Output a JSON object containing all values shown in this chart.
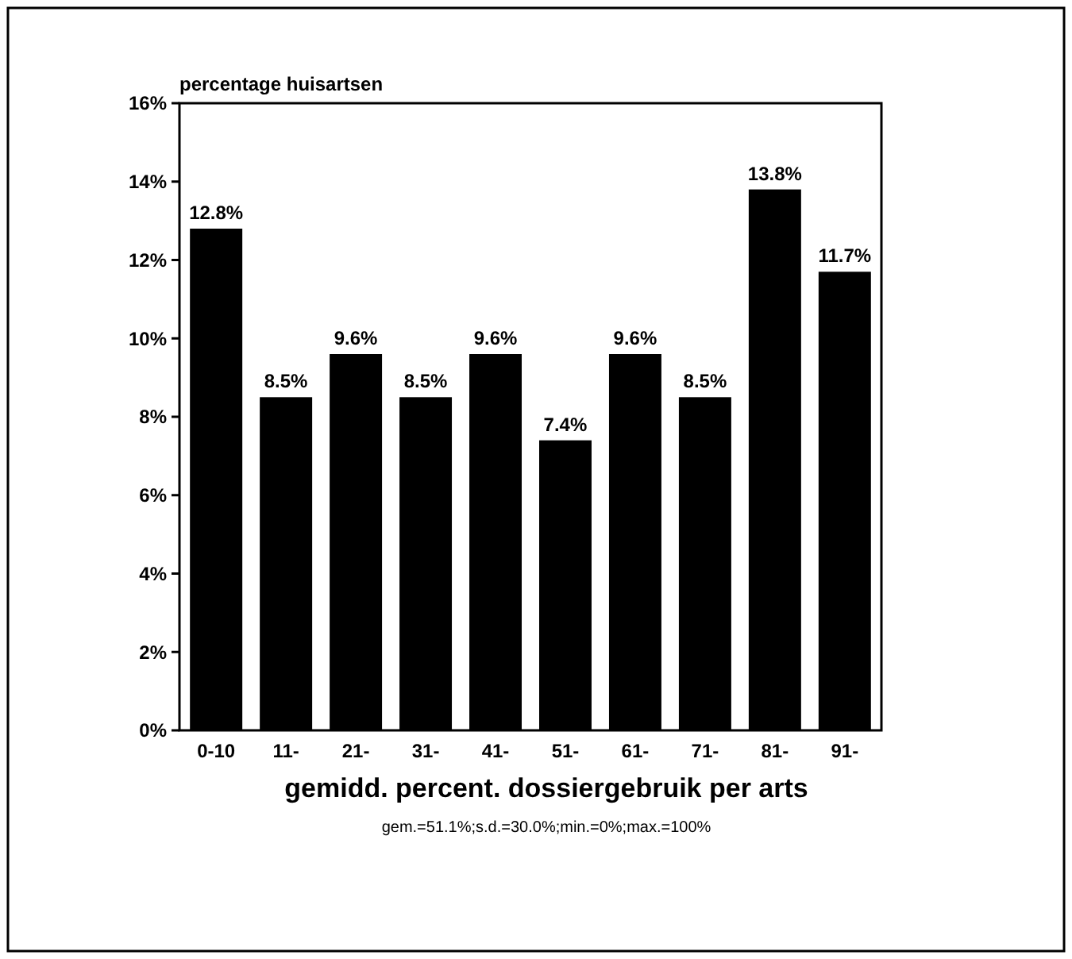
{
  "chart_data": {
    "type": "bar",
    "ylabel": "percentage huisartsen",
    "xlabel": "gemidd. percent. dossiergebruik per arts",
    "annotations": [
      "gem.=51.1%;s.d.=30.0%;min.=0%;max.=100%"
    ],
    "categories": [
      "0-10",
      "11-",
      "21-",
      "31-",
      "41-",
      "51-",
      "61-",
      "71-",
      "81-",
      "91-"
    ],
    "values": [
      12.8,
      8.5,
      9.6,
      8.5,
      9.6,
      7.4,
      9.6,
      8.5,
      13.8,
      11.7
    ],
    "value_labels": [
      "12.8%",
      "8.5%",
      "9.6%",
      "8.5%",
      "9.6%",
      "7.4%",
      "9.6%",
      "8.5%",
      "13.8%",
      "11.7%"
    ],
    "color": "#000000",
    "ylim": [
      0,
      16
    ],
    "yticks": [
      {
        "value": 0,
        "label": "0%"
      },
      {
        "value": 2,
        "label": "2%"
      },
      {
        "value": 4,
        "label": "4%"
      },
      {
        "value": 6,
        "label": "6%"
      },
      {
        "value": 8,
        "label": "8%"
      },
      {
        "value": 10,
        "label": "10%"
      },
      {
        "value": 12,
        "label": "12%"
      },
      {
        "value": 14,
        "label": "14%"
      },
      {
        "value": 16,
        "label": "16%"
      }
    ],
    "grid": false
  }
}
